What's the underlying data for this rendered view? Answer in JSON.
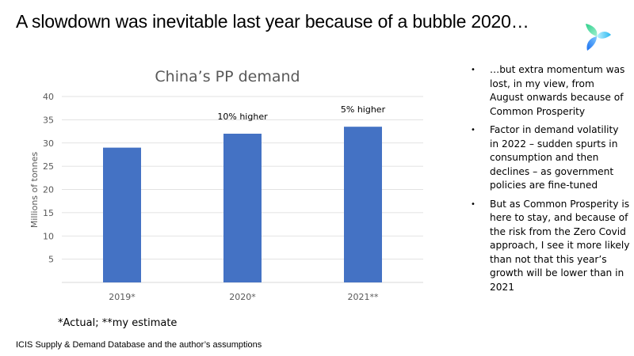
{
  "slide": {
    "title": "A slowdown was inevitable last year because of a bubble 2020…",
    "logo_icon": "triskelion-leaf-logo-icon",
    "footnote": "*Actual; **my estimate",
    "source": "ICIS Supply  & Demand Database and the author’s assumptions",
    "bullets": [
      "…but extra momentum was lost, in my view, from August onwards because of Common Prosperity",
      "Factor in demand volatility in 2022 – sudden spurts in consumption and then declines – as government policies are fine-tuned",
      "But as Common Prosperity is here to stay, and because of the risk from the Zero Covid approach, I see it more likely than not that this year’s growth will be lower than in 2021"
    ],
    "bullet_glyph": "•"
  },
  "chart_data": {
    "type": "bar",
    "title": "China’s PP demand",
    "xlabel": "",
    "ylabel": "Millions of tonnes",
    "categories": [
      "2019*",
      "2020*",
      "2021**"
    ],
    "values": [
      29,
      32,
      33.5
    ],
    "data_labels": [
      "",
      "10% higher",
      "5% higher"
    ],
    "ylim": [
      0,
      40
    ],
    "yticks": [
      5,
      10,
      15,
      20,
      25,
      30,
      35,
      40
    ],
    "grid": true,
    "legend": "none",
    "bar_color": "#4472C4",
    "grid_color": "#D9D9D9"
  }
}
